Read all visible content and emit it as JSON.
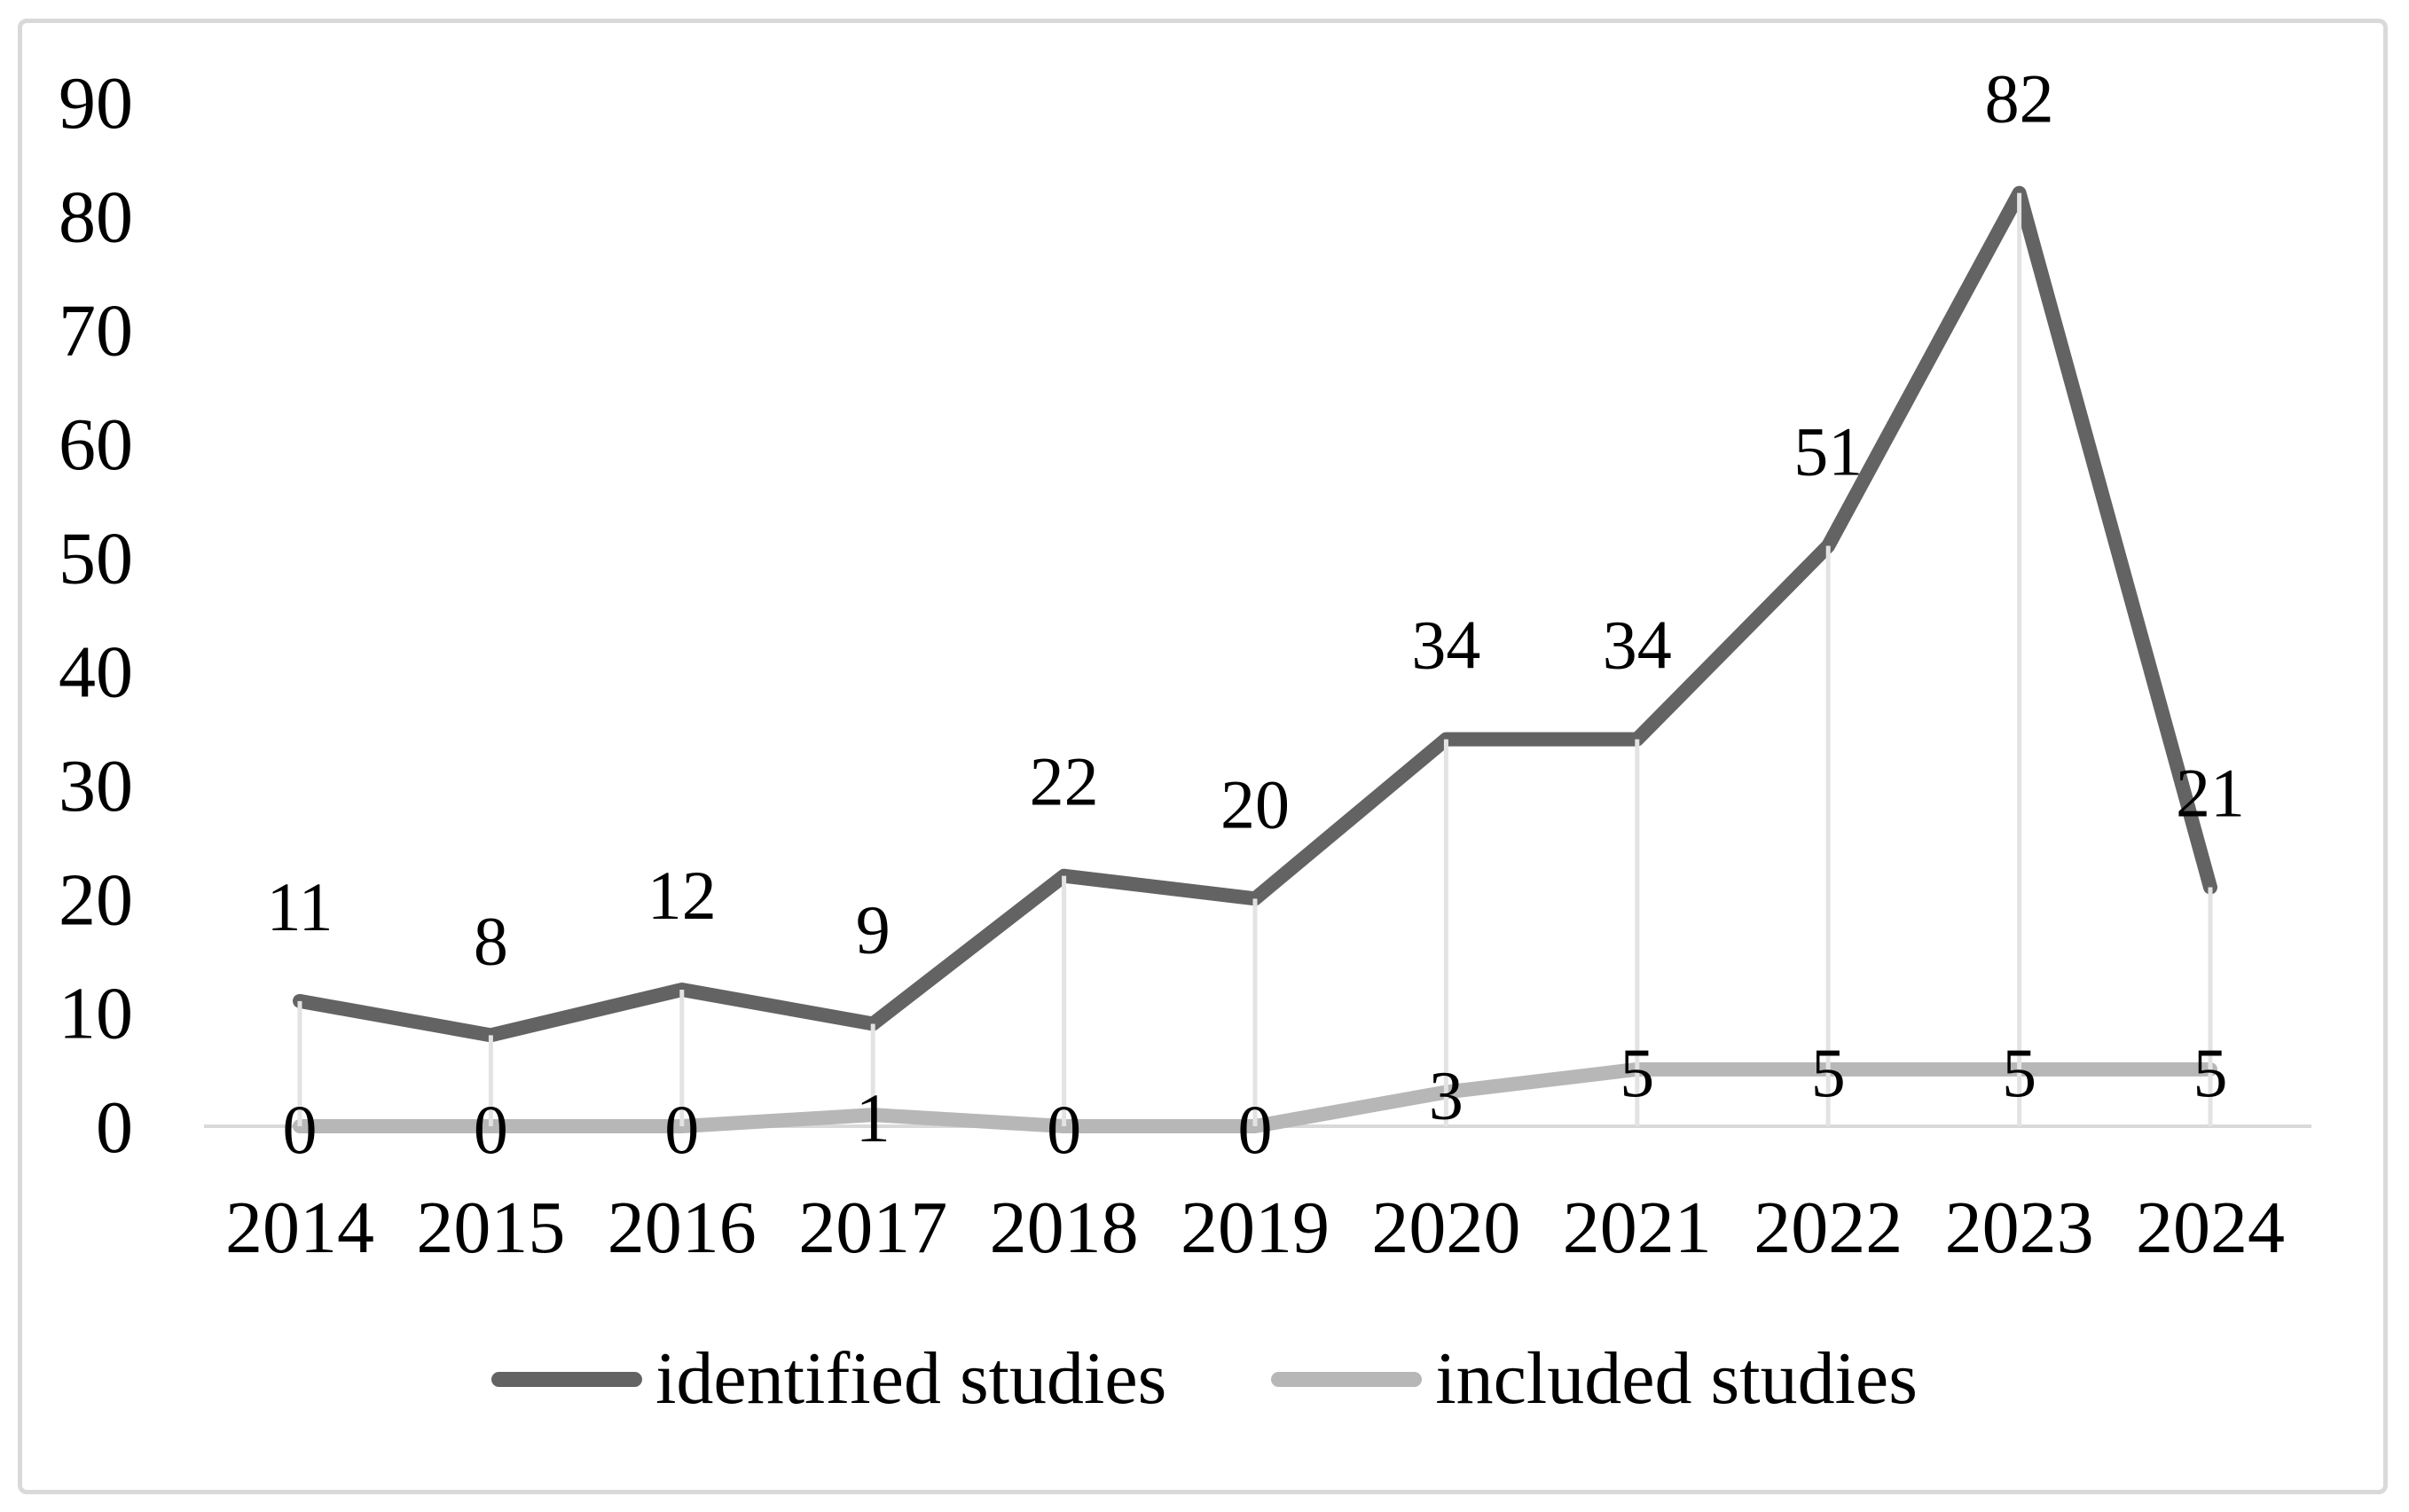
{
  "chart_data": {
    "type": "line",
    "categories": [
      "2014",
      "2015",
      "2016",
      "2017",
      "2018",
      "2019",
      "2020",
      "2021",
      "2022",
      "2023",
      "2024"
    ],
    "series": [
      {
        "name": "identified studies",
        "values": [
          11,
          8,
          12,
          9,
          22,
          20,
          34,
          34,
          51,
          82,
          21
        ],
        "color": "#636363",
        "data_labels": [
          "11",
          "8",
          "12",
          "9",
          "22",
          "20",
          "34",
          "34",
          "51",
          "82",
          "21"
        ],
        "label_position": "above"
      },
      {
        "name": "included studies",
        "values": [
          0,
          0,
          0,
          1,
          0,
          0,
          3,
          5,
          5,
          5,
          5
        ],
        "color": "#b7b7b7",
        "data_labels": [
          "0",
          "0",
          "0",
          "1",
          "0",
          "0",
          "3",
          "5",
          "5",
          "5",
          "5"
        ],
        "label_position": "center"
      }
    ],
    "title": "",
    "xlabel": "",
    "ylabel": "",
    "ylim": [
      0,
      90
    ],
    "ytick_step": 10,
    "yticks": [
      "0",
      "10",
      "20",
      "30",
      "40",
      "50",
      "60",
      "70",
      "80",
      "90"
    ],
    "grid": "vertical drop lines from identified-studies points to x-axis",
    "legend_position": "bottom"
  },
  "colors": {
    "axis_line": "#d9d9d9",
    "drop_line": "#e3e3e3",
    "frame_border": "#d9d9d9",
    "text": "#000000",
    "background": "#ffffff"
  }
}
